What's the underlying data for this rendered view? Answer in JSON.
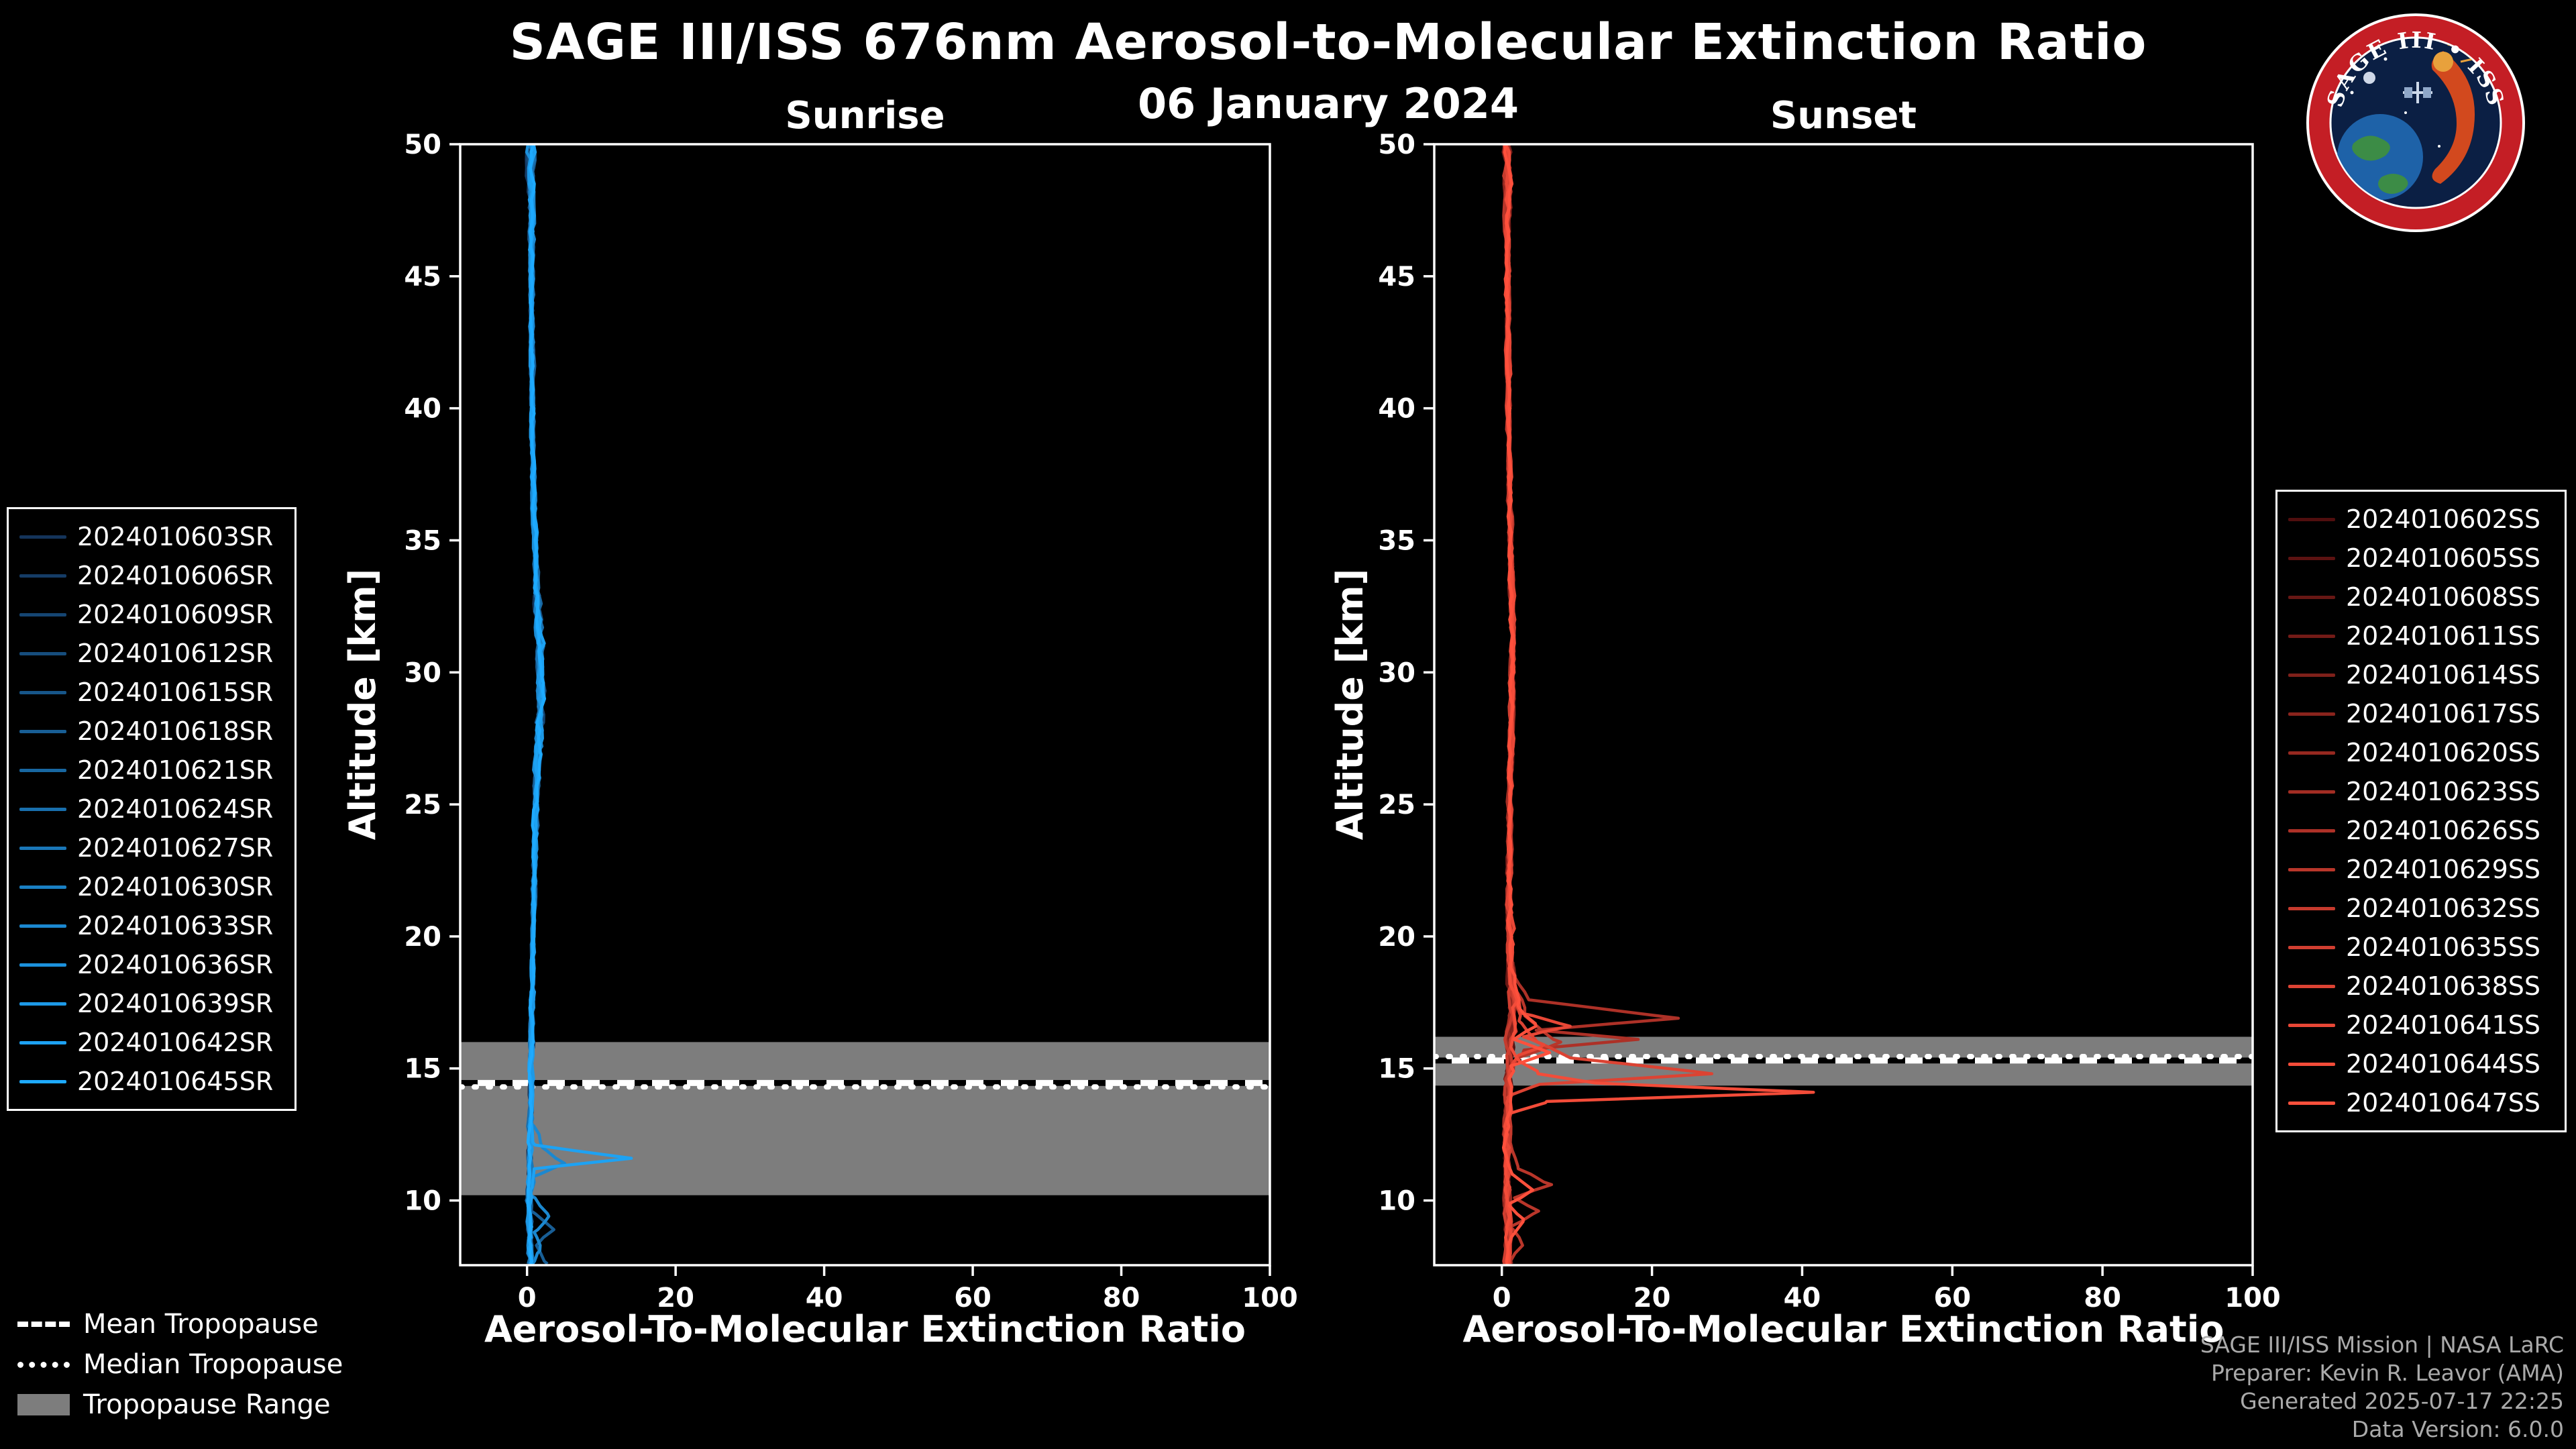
{
  "header": {
    "title": "SAGE III/ISS 676nm Aerosol-to-Molecular Extinction Ratio",
    "date": "06 January 2024"
  },
  "logo": {
    "text": "SAGE III • ISS"
  },
  "colors": {
    "background": "#000000",
    "text": "#ffffff",
    "tropopause_band": "#7d7d7d",
    "credits_text": "#aaaaaa",
    "sunrise_accent": "#1EAAFF",
    "sunset_accent": "#FF503C"
  },
  "tropopause_legend": {
    "mean_label": "Mean Tropopause",
    "median_label": "Median Tropopause",
    "range_label": "Tropopause Range"
  },
  "credits": {
    "line1": "SAGE III/ISS Mission | NASA LaRC",
    "line2": "Preparer: Kevin R. Leavor (AMA)",
    "line3": "Generated 2025-07-17 22:25",
    "line4": "Data Version: 6.0.0"
  },
  "chart_data": [
    {
      "type": "line",
      "title": "Sunrise",
      "xlabel": "Aerosol-To-Molecular Extinction Ratio",
      "ylabel": "Altitude [km]",
      "xlim": [
        -9,
        100
      ],
      "ylim": [
        7.55,
        50
      ],
      "xticks": [
        0,
        20,
        40,
        60,
        80,
        100
      ],
      "yticks": [
        10,
        15,
        20,
        25,
        30,
        35,
        40,
        45,
        50
      ],
      "legend_position": "outside-left",
      "grid": false,
      "tropopause": {
        "mean_km": 14.45,
        "median_km": 14.3,
        "range_km": [
          10.2,
          16.0
        ]
      },
      "base_profile": [
        [
          50,
          0.5
        ],
        [
          47,
          0.6
        ],
        [
          44,
          0.6
        ],
        [
          40,
          0.7
        ],
        [
          36,
          0.9
        ],
        [
          33,
          1.3
        ],
        [
          31,
          1.8
        ],
        [
          29,
          1.9
        ],
        [
          27,
          1.5
        ],
        [
          25,
          1.2
        ],
        [
          22,
          1.0
        ],
        [
          20,
          0.8
        ],
        [
          18,
          0.7
        ],
        [
          16,
          0.6
        ],
        [
          14,
          0.5
        ],
        [
          12,
          0.4
        ],
        [
          10,
          0.3
        ],
        [
          8.5,
          0.4
        ],
        [
          7.6,
          0.5
        ]
      ],
      "noise_amp": [
        [
          50,
          0.9
        ],
        [
          46,
          0.5
        ],
        [
          40,
          0.35
        ],
        [
          34,
          0.5
        ],
        [
          31,
          0.85
        ],
        [
          28,
          0.85
        ],
        [
          25,
          0.5
        ],
        [
          20,
          0.4
        ],
        [
          15,
          0.45
        ],
        [
          11,
          0.5
        ],
        [
          7.6,
          0.6
        ]
      ],
      "series": [
        {
          "name": "2024010603SR",
          "color": "#14345A"
        },
        {
          "name": "2024010606SR",
          "color": "#153C66"
        },
        {
          "name": "2024010609SR",
          "color": "#154572"
        },
        {
          "name": "2024010612SR",
          "color": "#164D7D"
        },
        {
          "name": "2024010615SR",
          "color": "#175689"
        },
        {
          "name": "2024010618SR",
          "color": "#185E95",
          "points": [
            [
              50,
              0.6
            ],
            [
              44,
              0.7
            ],
            [
              38,
              0.9
            ],
            [
              32,
              1.6
            ],
            [
              28,
              1.5
            ],
            [
              24,
              1.1
            ],
            [
              20,
              0.8
            ],
            [
              16,
              0.6
            ],
            [
              13,
              0.4
            ],
            [
              11,
              0.4
            ],
            [
              9.6,
              0.8
            ],
            [
              8.9,
              3.5
            ],
            [
              8.3,
              1.2
            ],
            [
              7.6,
              2.5
            ]
          ]
        },
        {
          "name": "2024010621SR",
          "color": "#1867A1"
        },
        {
          "name": "2024010624SR",
          "color": "#196FAD"
        },
        {
          "name": "2024010627SR",
          "color": "#1A77B8"
        },
        {
          "name": "2024010630SR",
          "color": "#1A80C4"
        },
        {
          "name": "2024010633SR",
          "color": "#1B88D0",
          "points": [
            [
              50,
              0.6
            ],
            [
              45,
              0.7
            ],
            [
              40,
              0.8
            ],
            [
              34,
              1.1
            ],
            [
              30,
              1.8
            ],
            [
              26,
              1.3
            ],
            [
              22,
              1.0
            ],
            [
              18,
              0.7
            ],
            [
              15,
              0.5
            ],
            [
              13,
              0.5
            ],
            [
              12,
              2.2
            ],
            [
              11.4,
              5
            ],
            [
              10.9,
              1
            ],
            [
              10.2,
              0.7
            ],
            [
              9.4,
              3
            ],
            [
              8.8,
              0.8
            ],
            [
              8.1,
              1.8
            ],
            [
              7.6,
              0.7
            ]
          ]
        },
        {
          "name": "2024010636SR",
          "color": "#1C91DC"
        },
        {
          "name": "2024010639SR",
          "color": "#1D99E7"
        },
        {
          "name": "2024010642SR",
          "color": "#1DA2F3",
          "points": [
            [
              50,
              0.6
            ],
            [
              46,
              0.7
            ],
            [
              42,
              0.7
            ],
            [
              38,
              0.8
            ],
            [
              34,
              1.2
            ],
            [
              31,
              1.9
            ],
            [
              28,
              1.6
            ],
            [
              24,
              1.1
            ],
            [
              20,
              0.8
            ],
            [
              17,
              0.6
            ],
            [
              14.5,
              0.5
            ],
            [
              13,
              0.6
            ],
            [
              12.1,
              1.0
            ],
            [
              11.6,
              14
            ],
            [
              11.2,
              1.2
            ],
            [
              10.5,
              0.6
            ],
            [
              9.8,
              0.4
            ],
            [
              9.0,
              0.5
            ],
            [
              8.2,
              0.4
            ],
            [
              7.6,
              0.5
            ]
          ]
        },
        {
          "name": "2024010645SR",
          "color": "#1EAAFF"
        }
      ]
    },
    {
      "type": "line",
      "title": "Sunset",
      "xlabel": "Aerosol-To-Molecular Extinction Ratio",
      "ylabel": "Altitude [km]",
      "xlim": [
        -9,
        100
      ],
      "ylim": [
        7.55,
        50
      ],
      "xticks": [
        0,
        20,
        40,
        60,
        80,
        100
      ],
      "yticks": [
        10,
        15,
        20,
        25,
        30,
        35,
        40,
        45,
        50
      ],
      "legend_position": "outside-right",
      "grid": false,
      "tropopause": {
        "mean_km": 15.3,
        "median_km": 15.45,
        "range_km": [
          14.35,
          16.2
        ]
      },
      "base_profile": [
        [
          50,
          0.7
        ],
        [
          47,
          0.8
        ],
        [
          44,
          0.8
        ],
        [
          40,
          0.9
        ],
        [
          36,
          1.1
        ],
        [
          32,
          1.4
        ],
        [
          29,
          1.4
        ],
        [
          26,
          1.1
        ],
        [
          23,
          1.0
        ],
        [
          20,
          1.0
        ],
        [
          18.5,
          1.2
        ],
        [
          17,
          1.3
        ],
        [
          15.5,
          1.0
        ],
        [
          14,
          0.8
        ],
        [
          12.5,
          0.7
        ],
        [
          11,
          0.7
        ],
        [
          9.5,
          0.8
        ],
        [
          8,
          0.8
        ],
        [
          7.6,
          0.8
        ]
      ],
      "noise_amp": [
        [
          50,
          1.0
        ],
        [
          46,
          0.5
        ],
        [
          40,
          0.4
        ],
        [
          32,
          0.5
        ],
        [
          24,
          0.5
        ],
        [
          19,
          0.7
        ],
        [
          17,
          1.0
        ],
        [
          15,
          1.0
        ],
        [
          12,
          0.8
        ],
        [
          9,
          0.8
        ],
        [
          7.6,
          0.7
        ]
      ],
      "series": [
        {
          "name": "2024010602SS",
          "color": "#500E0E"
        },
        {
          "name": "2024010605SS",
          "color": "#5C1211"
        },
        {
          "name": "2024010608SS",
          "color": "#671714"
        },
        {
          "name": "2024010611SS",
          "color": "#731B17"
        },
        {
          "name": "2024010614SS",
          "color": "#7F201A"
        },
        {
          "name": "2024010617SS",
          "color": "#8A241D"
        },
        {
          "name": "2024010620SS",
          "color": "#962820"
        },
        {
          "name": "2024010623SS",
          "color": "#A22D23"
        },
        {
          "name": "2024010626SS",
          "color": "#AD3127",
          "points": [
            [
              50,
              0.7
            ],
            [
              44,
              0.8
            ],
            [
              38,
              1.0
            ],
            [
              33,
              1.4
            ],
            [
              29,
              1.3
            ],
            [
              25,
              1.1
            ],
            [
              22,
              1.0
            ],
            [
              19,
              1.2
            ],
            [
              17.6,
              3
            ],
            [
              16.9,
              23
            ],
            [
              16.45,
              4
            ],
            [
              16.1,
              18
            ],
            [
              15.7,
              3
            ],
            [
              15.2,
              1
            ],
            [
              14,
              0.8
            ],
            [
              12,
              0.7
            ],
            [
              10,
              0.8
            ],
            [
              7.6,
              0.6
            ]
          ]
        },
        {
          "name": "2024010629SS",
          "color": "#B9362A",
          "points": [
            [
              50,
              0.7
            ],
            [
              45,
              0.8
            ],
            [
              40,
              0.9
            ],
            [
              34,
              1.3
            ],
            [
              30,
              1.4
            ],
            [
              26,
              1.1
            ],
            [
              22,
              1.0
            ],
            [
              19,
              1.2
            ],
            [
              17,
              3
            ],
            [
              16.0,
              8
            ],
            [
              15.4,
              2
            ],
            [
              14.5,
              1
            ],
            [
              13,
              0.8
            ],
            [
              11.2,
              2
            ],
            [
              10.6,
              6.5
            ],
            [
              10.1,
              2
            ],
            [
              9.6,
              5
            ],
            [
              9.0,
              1.5
            ],
            [
              8.3,
              3
            ],
            [
              7.6,
              1
            ]
          ]
        },
        {
          "name": "2024010632SS",
          "color": "#C53A2D"
        },
        {
          "name": "2024010635SS",
          "color": "#D03E30"
        },
        {
          "name": "2024010638SS",
          "color": "#DC4333",
          "points": [
            [
              50,
              0.7
            ],
            [
              44,
              0.8
            ],
            [
              38,
              1.0
            ],
            [
              32,
              1.5
            ],
            [
              28,
              1.3
            ],
            [
              24,
              1.0
            ],
            [
              20,
              1.0
            ],
            [
              18,
              1.3
            ],
            [
              16.8,
              2
            ],
            [
              16.0,
              4
            ],
            [
              15.4,
              9
            ],
            [
              14.8,
              28
            ],
            [
              14.4,
              5
            ],
            [
              13.9,
              1
            ],
            [
              12.5,
              0.8
            ],
            [
              11,
              0.7
            ],
            [
              9,
              0.9
            ],
            [
              7.6,
              0.8
            ]
          ]
        },
        {
          "name": "2024010641SS",
          "color": "#E84736",
          "points": [
            [
              50,
              0.7
            ],
            [
              45,
              0.8
            ],
            [
              40,
              0.9
            ],
            [
              34,
              1.2
            ],
            [
              30,
              1.4
            ],
            [
              26,
              1.1
            ],
            [
              22,
              1.0
            ],
            [
              19.5,
              1.3
            ],
            [
              18,
              1.6
            ],
            [
              17.1,
              2.5
            ],
            [
              16.6,
              9
            ],
            [
              16.2,
              3
            ],
            [
              15.9,
              6
            ],
            [
              15.5,
              2
            ],
            [
              14.8,
              1
            ],
            [
              13.5,
              0.8
            ],
            [
              12,
              0.7
            ],
            [
              10.5,
              0.8
            ],
            [
              9,
              1
            ],
            [
              7.6,
              0.8
            ]
          ]
        },
        {
          "name": "2024010644SS",
          "color": "#F34C39",
          "points": [
            [
              50,
              0.8
            ],
            [
              45,
              0.8
            ],
            [
              40,
              0.9
            ],
            [
              35,
              1.1
            ],
            [
              30,
              1.6
            ],
            [
              26,
              1.2
            ],
            [
              22,
              1.0
            ],
            [
              19,
              1.2
            ],
            [
              17.5,
              1.5
            ],
            [
              16.3,
              2
            ],
            [
              15.3,
              2
            ],
            [
              14.8,
              5
            ],
            [
              14.45,
              12
            ],
            [
              14.1,
              41
            ],
            [
              13.75,
              6
            ],
            [
              13.3,
              1
            ],
            [
              12,
              0.8
            ],
            [
              10.5,
              0.6
            ],
            [
              9,
              0.8
            ],
            [
              7.6,
              0.7
            ]
          ]
        },
        {
          "name": "2024010647SS",
          "color": "#FF503C",
          "points": [
            [
              50,
              0.8
            ],
            [
              45,
              0.8
            ],
            [
              40,
              0.9
            ],
            [
              35,
              1.1
            ],
            [
              30,
              1.5
            ],
            [
              26,
              1.2
            ],
            [
              22,
              1.0
            ],
            [
              19,
              1.2
            ],
            [
              17.4,
              2.5
            ],
            [
              16.6,
              5
            ],
            [
              16.1,
              2
            ],
            [
              15.6,
              6
            ],
            [
              15.1,
              1.5
            ],
            [
              13.5,
              0.8
            ],
            [
              12,
              0.7
            ],
            [
              11,
              1.5
            ],
            [
              10.4,
              4
            ],
            [
              9.9,
              1
            ],
            [
              9.3,
              2.5
            ],
            [
              8.6,
              0.8
            ],
            [
              7.6,
              0.9
            ]
          ]
        }
      ]
    }
  ]
}
